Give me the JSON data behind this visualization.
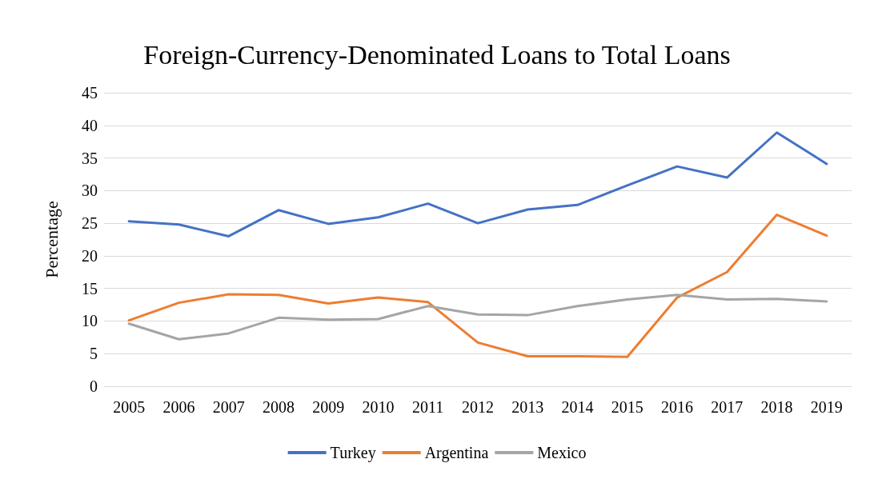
{
  "chart_data": {
    "type": "line",
    "title": "Foreign-Currency-Denominated Loans to Total Loans",
    "ylabel": "Percentage",
    "categories": [
      "2005",
      "2006",
      "2007",
      "2008",
      "2009",
      "2010",
      "2011",
      "2012",
      "2013",
      "2014",
      "2015",
      "2016",
      "2017",
      "2018",
      "2019"
    ],
    "series": [
      {
        "name": "Turkey",
        "color": "#4472c4",
        "values": [
          25.3,
          24.8,
          23.0,
          27.0,
          24.9,
          25.9,
          28.0,
          25.0,
          27.1,
          27.8,
          30.8,
          33.7,
          32.0,
          38.9,
          34.1
        ]
      },
      {
        "name": "Argentina",
        "color": "#ed7d31",
        "values": [
          10.1,
          12.8,
          14.1,
          14.0,
          12.7,
          13.6,
          12.9,
          6.7,
          4.6,
          4.6,
          4.5,
          13.6,
          17.5,
          26.3,
          23.1
        ]
      },
      {
        "name": "Mexico",
        "color": "#a5a5a5",
        "values": [
          9.6,
          7.2,
          8.1,
          10.5,
          10.2,
          10.3,
          12.3,
          11.0,
          10.9,
          12.3,
          13.3,
          14.0,
          13.3,
          13.4,
          13.0
        ]
      }
    ],
    "ylim": [
      0,
      45
    ],
    "yticks": [
      0,
      5,
      10,
      15,
      20,
      25,
      30,
      35,
      40,
      45
    ],
    "grid": "y",
    "legend": "bottom",
    "marker": "none",
    "line_style": "solid"
  }
}
